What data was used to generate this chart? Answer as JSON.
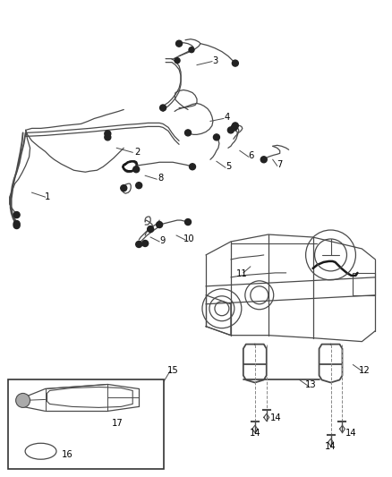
{
  "bg_color": "#ffffff",
  "line_color": "#4a4a4a",
  "label_color": "#000000",
  "fig_width": 4.38,
  "fig_height": 5.33,
  "dpi": 100
}
